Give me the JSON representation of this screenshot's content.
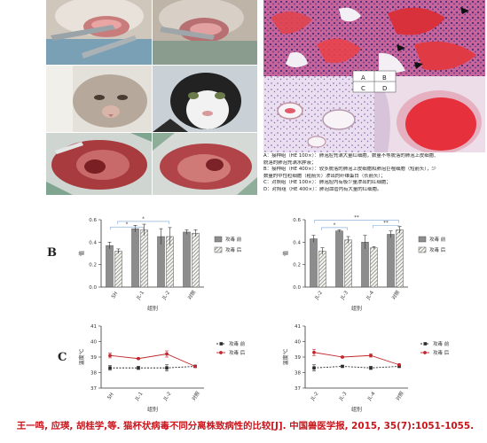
{
  "panel_labels": {
    "b": "B",
    "c": "C"
  },
  "histology_quadrants": [
    "A",
    "B",
    "C",
    "D"
  ],
  "caption_lines": [
    "A：接种组（HE 100×）：肺泡腔充满大量红细胞，数量不等脱落的肺泡上皮细胞、",
    "    脱落的肺泡充满水肿液；",
    "B：接种组（HE 400×）：较多脱落的肺泡上皮细胞和肺泡巨噬细胞（短箭头），少",
    "    数量的中性粒细胞（粗箭头）渗出的纤维蛋白（长箭头）；",
    "C：对照组（HE 100×）：肺泡腔内有极少量渗出的红细胞；",
    "D：对照组（HE 400×）：肺泡血管内有大量的红细胞。"
  ],
  "citation": "王一鸣, 应瑛, 胡桂学,等. 猫杯状病毒不同分离株致病性的比较[J]. 中国兽医学报, 2015, 35(7):1051-1055.",
  "colors": {
    "dark": "#2b2b2b",
    "red": "#c0282d",
    "bar_gray": "#8a8a8a",
    "bar_green_gray": "#7d8a80",
    "bracket_blue": "#8fb4dc",
    "citation": "#c8161d"
  },
  "chart_data": [
    {
      "type": "bar",
      "panel": "B",
      "categories": [
        "SH",
        "JL-1",
        "JL-2",
        "对照"
      ],
      "series": [
        {
          "name": "攻毒 前",
          "values": [
            0.37,
            0.52,
            0.45,
            0.49
          ],
          "errors": [
            0.03,
            0.03,
            0.07,
            0.02
          ]
        },
        {
          "name": "攻毒 后",
          "values": [
            0.32,
            0.51,
            0.45,
            0.48
          ],
          "errors": [
            0.02,
            0.05,
            0.08,
            0.03
          ]
        }
      ],
      "xlabel": "组别",
      "ylabel": "值",
      "ylim": [
        0,
        0.6
      ],
      "yticks": [
        "0.0",
        "0.2",
        "0.4",
        "0.6"
      ],
      "legend": "right",
      "significance": [
        "*",
        "*"
      ]
    },
    {
      "type": "bar",
      "panel": "B",
      "categories": [
        "JL-2",
        "JL-3",
        "JL-4",
        "对照"
      ],
      "series": [
        {
          "name": "攻毒 前",
          "values": [
            0.43,
            0.5,
            0.4,
            0.47
          ],
          "errors": [
            0.03,
            0.01,
            0.06,
            0.03
          ]
        },
        {
          "name": "攻毒 后",
          "values": [
            0.32,
            0.42,
            0.35,
            0.51
          ],
          "errors": [
            0.03,
            0.03,
            0.01,
            0.03
          ]
        }
      ],
      "xlabel": "组别",
      "ylabel": "值",
      "ylim": [
        0,
        0.6
      ],
      "yticks": [
        "0.0",
        "0.2",
        "0.4",
        "0.6"
      ],
      "legend": "right",
      "significance": [
        "**",
        "*",
        "**"
      ]
    },
    {
      "type": "line",
      "panel": "C",
      "categories": [
        "SH",
        "JL-1",
        "JL-2",
        "对照"
      ],
      "series": [
        {
          "name": "攻毒 前",
          "values": [
            38.3,
            38.3,
            38.3,
            38.4
          ],
          "errors": [
            0.15,
            0.1,
            0.2,
            0.05
          ],
          "style": "dashed"
        },
        {
          "name": "攻毒 后",
          "values": [
            39.1,
            38.9,
            39.2,
            38.4
          ],
          "errors": [
            0.15,
            0.05,
            0.2,
            0.05
          ],
          "style": "solid"
        }
      ],
      "xlabel": "组别",
      "ylabel": "温度℃",
      "ylim": [
        37,
        41
      ],
      "yticks": [
        "37",
        "38",
        "39",
        "40",
        "41"
      ],
      "legend": "right"
    },
    {
      "type": "line",
      "panel": "C",
      "categories": [
        "JL-2",
        "JL-3",
        "JL-4",
        "对照"
      ],
      "series": [
        {
          "name": "攻毒 前",
          "values": [
            38.3,
            38.4,
            38.3,
            38.4
          ],
          "errors": [
            0.2,
            0.05,
            0.1,
            0.05
          ],
          "style": "dashed"
        },
        {
          "name": "攻毒 后",
          "values": [
            39.3,
            39.0,
            39.1,
            38.5
          ],
          "errors": [
            0.2,
            0.05,
            0.1,
            0.05
          ],
          "style": "solid"
        }
      ],
      "xlabel": "组别",
      "ylabel": "温度℃",
      "ylim": [
        37,
        41
      ],
      "yticks": [
        "37",
        "38",
        "39",
        "40",
        "41"
      ],
      "legend": "right"
    }
  ]
}
